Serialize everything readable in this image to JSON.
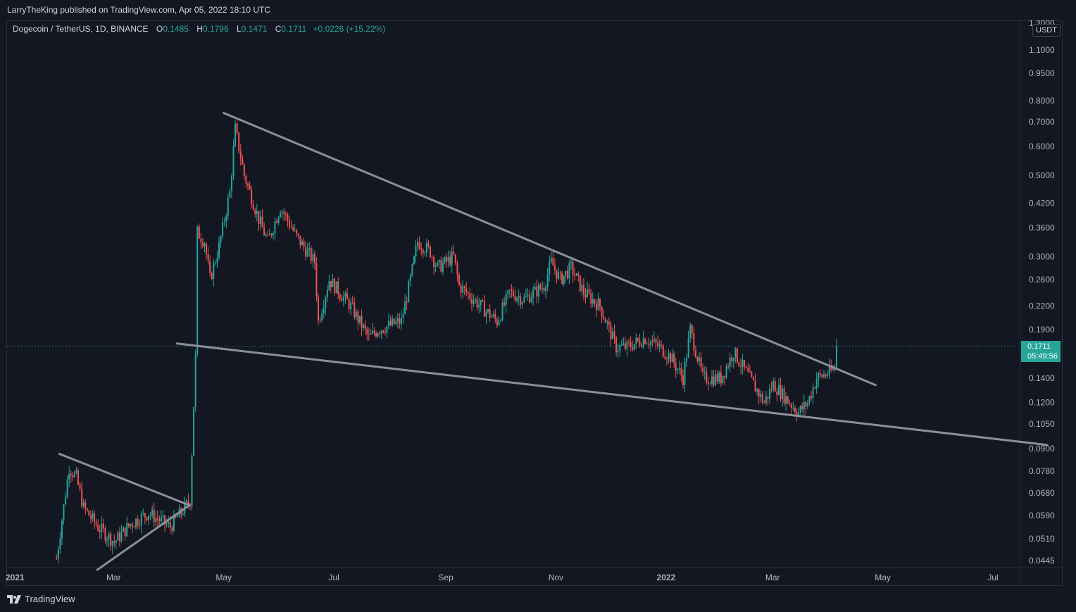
{
  "header": {
    "publisher": "LarryTheKing published on TradingView.com, Apr 05, 2022 18:10 UTC"
  },
  "symbol": {
    "name": "Dogecoin / TetherUS, 1D, BINANCE",
    "open_label": "O",
    "open": "0.1485",
    "high_label": "H",
    "high": "0.1796",
    "low_label": "L",
    "low": "0.1471",
    "close_label": "C",
    "close": "0.1711",
    "change": "+0.0226 (+15.22%)"
  },
  "currency": "USDT",
  "price_tag": {
    "price": "0.1711",
    "countdown": "05:49:56"
  },
  "footer": {
    "brand": "TradingView"
  },
  "colors": {
    "background": "#131722",
    "up": "#26a69a",
    "down": "#ef5350",
    "trendline": "#8c8f99",
    "text": "#b2b5be",
    "border": "#2a2e39"
  },
  "chart_data": {
    "type": "candlestick",
    "scale": "log",
    "y_range": [
      0.042,
      1.4
    ],
    "x_range": [
      "2021-01-01",
      "2022-07-31"
    ],
    "y_ticks": [
      "1.3000",
      "1.1000",
      "0.9500",
      "0.8000",
      "0.7000",
      "0.6000",
      "0.5000",
      "0.4200",
      "0.3600",
      "0.3000",
      "0.2600",
      "0.2200",
      "0.1900",
      "0.1400",
      "0.1200",
      "0.1050",
      "0.0900",
      "0.0780",
      "0.0680",
      "0.0590",
      "0.0510",
      "0.0445"
    ],
    "x_ticks": [
      "2021",
      "Mar",
      "May",
      "Jul",
      "Sep",
      "Nov",
      "2022",
      "Mar",
      "May",
      "Jul"
    ],
    "x_tick_dates": [
      "2021-01-01",
      "2021-03-01",
      "2021-05-01",
      "2021-07-01",
      "2021-09-01",
      "2021-11-01",
      "2022-01-01",
      "2022-03-01",
      "2022-05-01",
      "2022-07-01"
    ],
    "last_price": 0.1711,
    "price_path": [
      [
        "2021-01-28",
        0.045
      ],
      [
        "2021-02-04",
        0.08
      ],
      [
        "2021-02-08",
        0.075
      ],
      [
        "2021-02-12",
        0.062
      ],
      [
        "2021-02-20",
        0.055
      ],
      [
        "2021-03-01",
        0.05
      ],
      [
        "2021-03-10",
        0.056
      ],
      [
        "2021-03-20",
        0.06
      ],
      [
        "2021-04-01",
        0.055
      ],
      [
        "2021-04-12",
        0.065
      ],
      [
        "2021-04-15",
        0.16
      ],
      [
        "2021-04-16",
        0.35
      ],
      [
        "2021-04-20",
        0.33
      ],
      [
        "2021-04-23",
        0.26
      ],
      [
        "2021-04-28",
        0.32
      ],
      [
        "2021-05-04",
        0.45
      ],
      [
        "2021-05-07",
        0.67
      ],
      [
        "2021-05-12",
        0.5
      ],
      [
        "2021-05-20",
        0.38
      ],
      [
        "2021-05-25",
        0.33
      ],
      [
        "2021-06-01",
        0.41
      ],
      [
        "2021-06-10",
        0.34
      ],
      [
        "2021-06-20",
        0.29
      ],
      [
        "2021-06-22",
        0.2
      ],
      [
        "2021-06-28",
        0.26
      ],
      [
        "2021-07-10",
        0.22
      ],
      [
        "2021-07-20",
        0.18
      ],
      [
        "2021-07-25",
        0.19
      ],
      [
        "2021-08-07",
        0.2
      ],
      [
        "2021-08-12",
        0.26
      ],
      [
        "2021-08-16",
        0.33
      ],
      [
        "2021-08-23",
        0.31
      ],
      [
        "2021-08-27",
        0.28
      ],
      [
        "2021-09-05",
        0.3
      ],
      [
        "2021-09-08",
        0.25
      ],
      [
        "2021-09-20",
        0.22
      ],
      [
        "2021-09-29",
        0.2
      ],
      [
        "2021-10-06",
        0.24
      ],
      [
        "2021-10-14",
        0.23
      ],
      [
        "2021-10-25",
        0.25
      ],
      [
        "2021-10-29",
        0.29
      ],
      [
        "2021-11-03",
        0.26
      ],
      [
        "2021-11-09",
        0.28
      ],
      [
        "2021-11-16",
        0.24
      ],
      [
        "2021-11-25",
        0.22
      ],
      [
        "2021-12-04",
        0.17
      ],
      [
        "2021-12-10",
        0.17
      ],
      [
        "2021-12-20",
        0.18
      ],
      [
        "2021-12-28",
        0.17
      ],
      [
        "2022-01-03",
        0.16
      ],
      [
        "2022-01-10",
        0.14
      ],
      [
        "2022-01-14",
        0.19
      ],
      [
        "2022-01-21",
        0.14
      ],
      [
        "2022-01-31",
        0.14
      ],
      [
        "2022-02-07",
        0.165
      ],
      [
        "2022-02-14",
        0.145
      ],
      [
        "2022-02-24",
        0.12
      ],
      [
        "2022-03-01",
        0.135
      ],
      [
        "2022-03-10",
        0.12
      ],
      [
        "2022-03-15",
        0.113
      ],
      [
        "2022-03-20",
        0.12
      ],
      [
        "2022-03-25",
        0.14
      ],
      [
        "2022-04-01",
        0.145
      ],
      [
        "2022-04-04",
        0.1485
      ],
      [
        "2022-04-05",
        0.1711
      ]
    ],
    "trendlines": [
      {
        "from": [
          "2021-05-01",
          0.74
        ],
        "to": [
          "2022-04-27",
          0.134
        ]
      },
      {
        "from": [
          "2021-04-05",
          0.174
        ],
        "to": [
          "2022-07-31",
          0.092
        ]
      },
      {
        "from": [
          "2021-01-30",
          0.087
        ],
        "to": [
          "2021-04-12",
          0.063
        ]
      },
      {
        "from": [
          "2021-02-20",
          0.042
        ],
        "to": [
          "2021-04-12",
          0.063
        ]
      }
    ]
  }
}
